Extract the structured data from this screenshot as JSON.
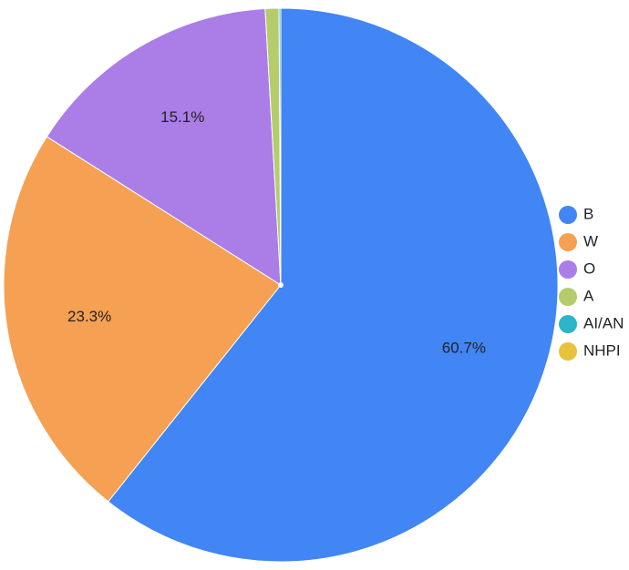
{
  "chart_data": {
    "type": "pie",
    "categories": [
      "B",
      "W",
      "O",
      "A",
      "AI/AN",
      "NHPI"
    ],
    "values": [
      60.7,
      23.3,
      15.1,
      0.8,
      0.1,
      0
    ],
    "value_labels": [
      "60.7%",
      "23.3%",
      "15.1%",
      null,
      null,
      null
    ],
    "colors": [
      "#4285f4",
      "#f5a052",
      "#ab7de6",
      "#b4cc6a",
      "#2bb5c8",
      "#e8c23a"
    ],
    "legend": "right"
  }
}
